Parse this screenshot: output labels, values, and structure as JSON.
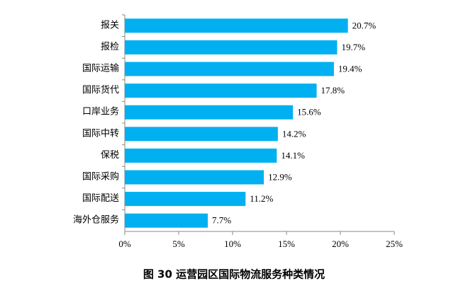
{
  "chart_data": {
    "type": "hbar",
    "title": "图 30 运营园区国际物流服务种类情况",
    "categories": [
      "报关",
      "报检",
      "国际运输",
      "国际货代",
      "口岸业务",
      "国际中转",
      "保税",
      "国际采购",
      "国际配送",
      "海外仓服务"
    ],
    "values": [
      20.7,
      19.7,
      19.4,
      17.8,
      15.6,
      14.2,
      14.1,
      12.9,
      11.2,
      7.7
    ],
    "value_labels": [
      "20.7%",
      "19.7%",
      "19.4%",
      "17.8%",
      "15.6%",
      "14.2%",
      "14.1%",
      "12.9%",
      "11.2%",
      "7.7%"
    ],
    "color": "#00b0f0",
    "xlim": [
      0,
      25
    ],
    "xticks": [
      {
        "value": 0,
        "label": "0%"
      },
      {
        "value": 5,
        "label": "5%"
      },
      {
        "value": 10,
        "label": "10%"
      },
      {
        "value": 15,
        "label": "15%"
      },
      {
        "value": 20,
        "label": "20%"
      },
      {
        "value": 25,
        "label": "25%"
      }
    ],
    "grid": false
  }
}
